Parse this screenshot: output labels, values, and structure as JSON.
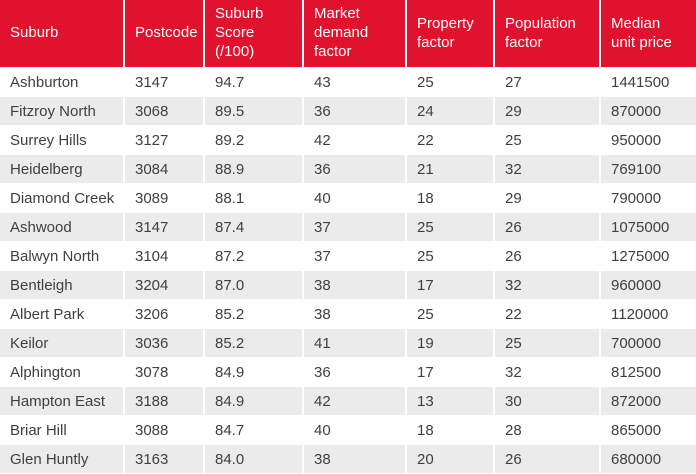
{
  "chart_data": {
    "type": "table",
    "columns": [
      "Suburb",
      "Postcode",
      "Suburb Score (/100)",
      "Market demand factor",
      "Property factor",
      "Population factor",
      "Median unit price"
    ],
    "rows": [
      [
        "Ashburton",
        "3147",
        "94.7",
        "43",
        "25",
        "27",
        "1441500"
      ],
      [
        "Fitzroy North",
        "3068",
        "89.5",
        "36",
        "24",
        "29",
        "870000"
      ],
      [
        "Surrey Hills",
        "3127",
        "89.2",
        "42",
        "22",
        "25",
        "950000"
      ],
      [
        "Heidelberg",
        "3084",
        "88.9",
        "36",
        "21",
        "32",
        "769100"
      ],
      [
        "Diamond Creek",
        "3089",
        "88.1",
        "40",
        "18",
        "29",
        "790000"
      ],
      [
        "Ashwood",
        "3147",
        "87.4",
        "37",
        "25",
        "26",
        "1075000"
      ],
      [
        "Balwyn North",
        "3104",
        "87.2",
        "37",
        "25",
        "26",
        "1275000"
      ],
      [
        "Bentleigh",
        "3204",
        "87.0",
        "38",
        "17",
        "32",
        "960000"
      ],
      [
        "Albert Park",
        "3206",
        "85.2",
        "38",
        "25",
        "22",
        "1120000"
      ],
      [
        "Keilor",
        "3036",
        "85.2",
        "41",
        "19",
        "25",
        "700000"
      ],
      [
        "Alphington",
        "3078",
        "84.9",
        "36",
        "17",
        "32",
        "812500"
      ],
      [
        "Hampton East",
        "3188",
        "84.9",
        "42",
        "13",
        "30",
        "872000"
      ],
      [
        "Briar Hill",
        "3088",
        "84.7",
        "40",
        "18",
        "28",
        "865000"
      ],
      [
        "Glen Huntly",
        "3163",
        "84.0",
        "38",
        "20",
        "26",
        "680000"
      ]
    ]
  },
  "colors": {
    "header_bg": "#e0122e",
    "header_text": "#ffffff",
    "row_bg": "#ffffff",
    "row_alt_bg": "#ebebeb",
    "cell_text": "#3f3f3f",
    "divider": "#ffffff"
  }
}
